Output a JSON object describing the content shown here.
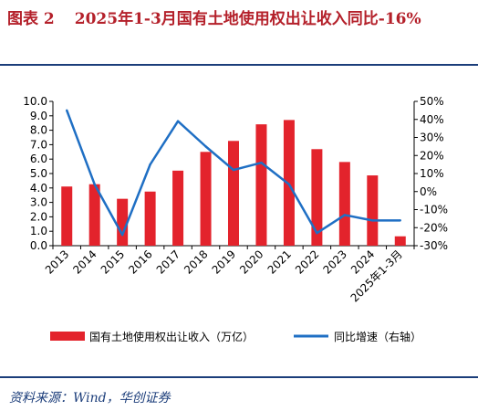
{
  "header": {
    "figure_label": "图表 2",
    "title_text": "2025年1-3月国有土地使用权出让收入同比-16%"
  },
  "source_text": "资料来源：Wind，华创证券",
  "colors": {
    "bar": "#e3232c",
    "line": "#1f6fc4",
    "title": "#b4202a",
    "rule": "#1b3d7a"
  },
  "chart_data": {
    "type": "bar",
    "title": "",
    "categories": [
      "2013",
      "2014",
      "2015",
      "2016",
      "2017",
      "2018",
      "2019",
      "2020",
      "2021",
      "2022",
      "2023",
      "2024",
      "2025年1-3月"
    ],
    "series": [
      {
        "name": "国有土地使用权出让收入（万亿）",
        "type": "bar",
        "axis": "left",
        "values": [
          4.1,
          4.26,
          3.25,
          3.75,
          5.2,
          6.5,
          7.26,
          8.41,
          8.71,
          6.69,
          5.8,
          4.87,
          0.65
        ]
      },
      {
        "name": "同比增速（右轴）",
        "type": "line",
        "axis": "right",
        "values": [
          45,
          4,
          -24,
          15,
          39,
          25,
          12,
          16,
          4,
          -23,
          -13,
          -16,
          -16
        ]
      }
    ],
    "y_left": {
      "min": 0,
      "max": 10,
      "step": 1,
      "tick_labels": [
        "0.0",
        "1.0",
        "2.0",
        "3.0",
        "4.0",
        "5.0",
        "6.0",
        "7.0",
        "8.0",
        "9.0",
        "10.0"
      ]
    },
    "y_right": {
      "min": -30,
      "max": 50,
      "step": 10,
      "tick_labels": [
        "-30%",
        "-20%",
        "-10%",
        "0%",
        "10%",
        "20%",
        "30%",
        "40%",
        "50%"
      ]
    },
    "grid": false,
    "legend_position": "bottom"
  }
}
